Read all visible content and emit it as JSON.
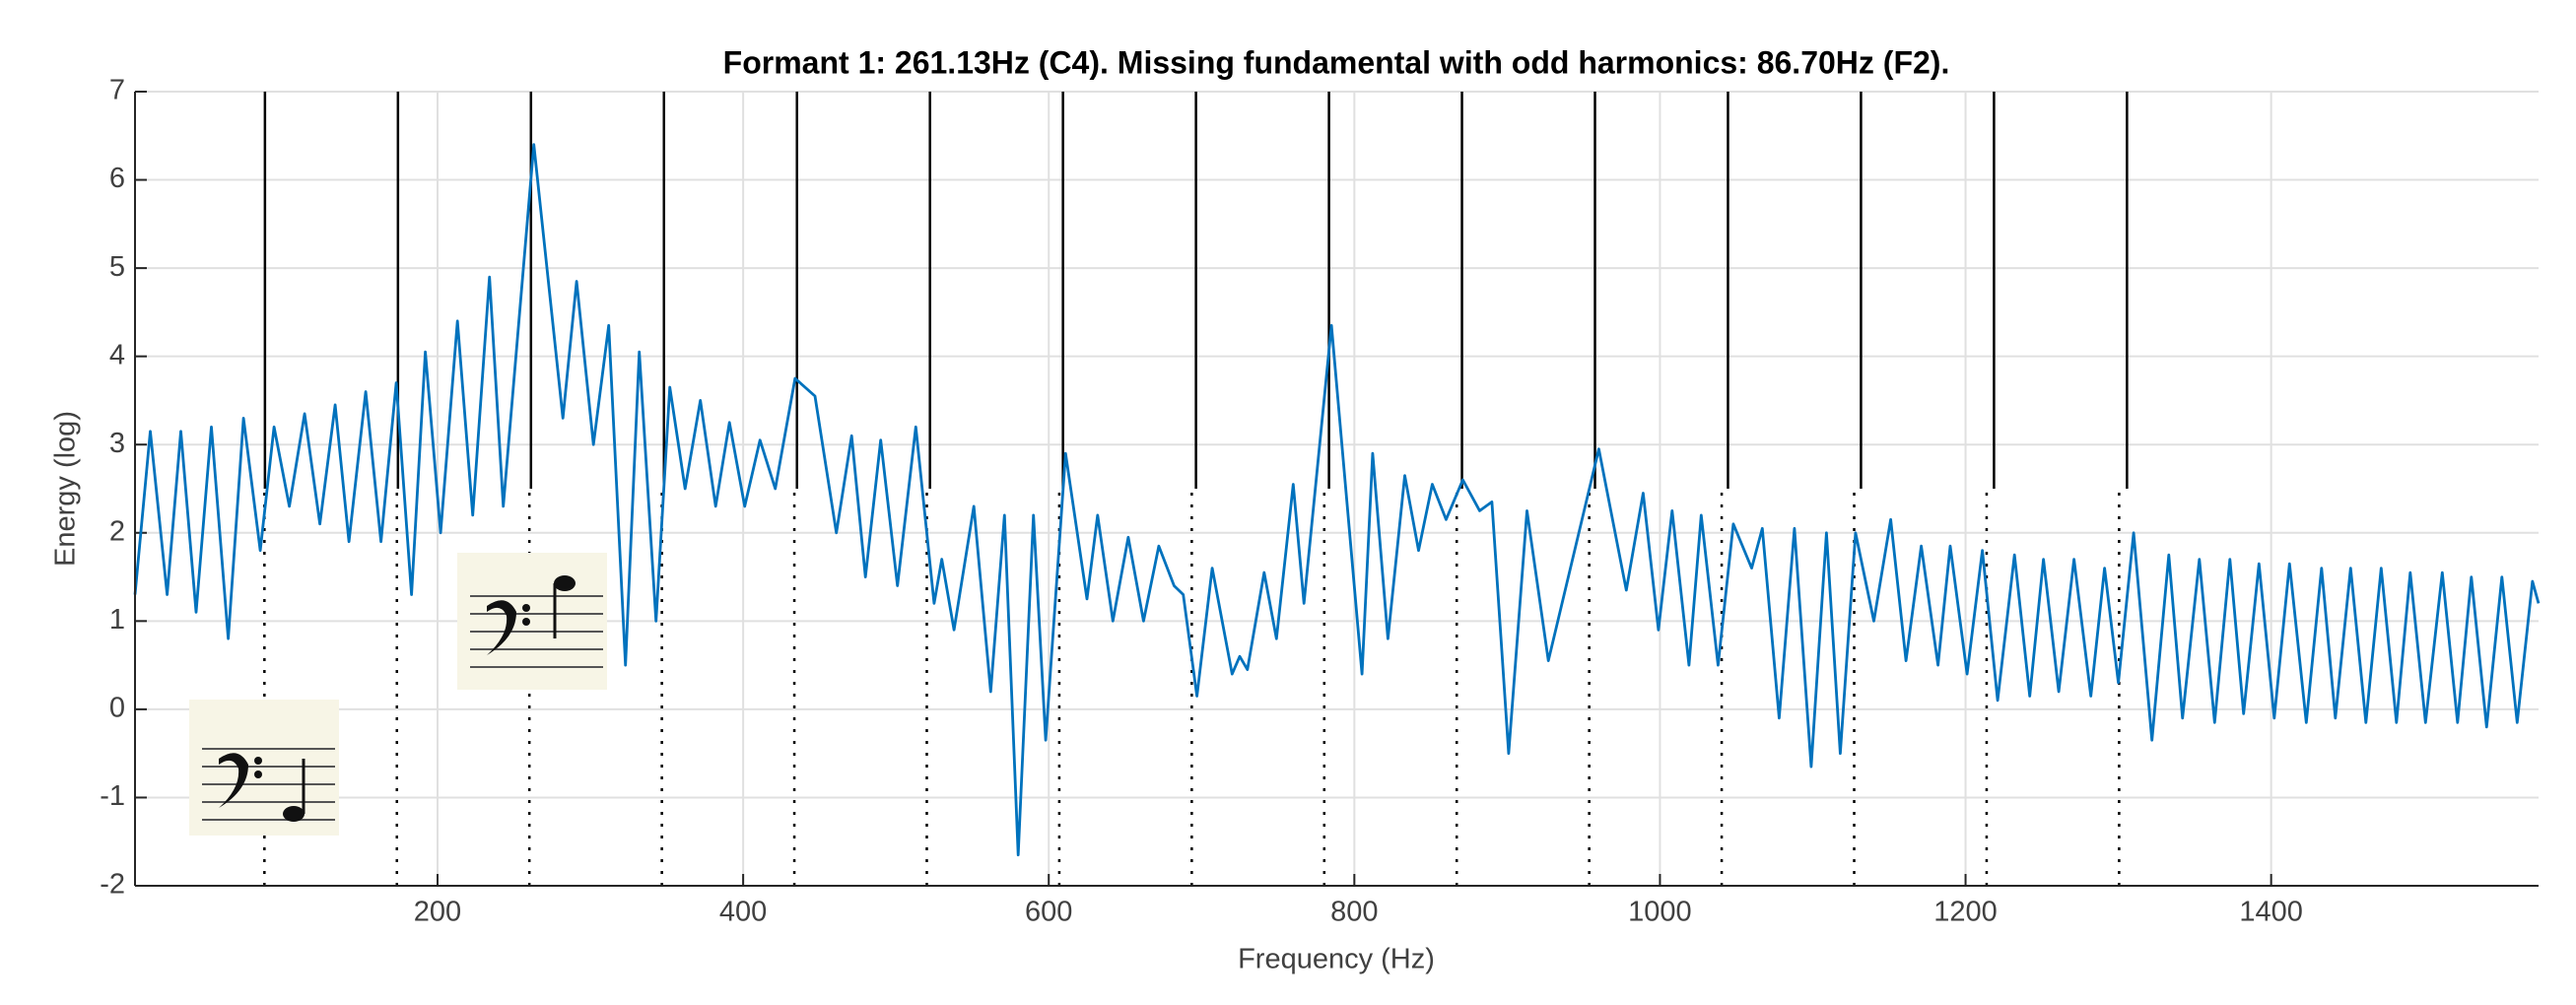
{
  "chart_data": {
    "type": "line",
    "title": "Formant 1: 261.13Hz (C4). Missing fundamental with odd harmonics: 86.70Hz (F2).",
    "xlabel": "Frequency (Hz)",
    "ylabel": "Energy (log)",
    "x": [
      2,
      12,
      23,
      32,
      42,
      52,
      63,
      73,
      84,
      93,
      103,
      113,
      123,
      133,
      142,
      153,
      163,
      173,
      183,
      192,
      202,
      213,
      223,
      234,
      243,
      263,
      282,
      291,
      302,
      312,
      323,
      332,
      343,
      352,
      362,
      372,
      382,
      391,
      401,
      411,
      421,
      434,
      447,
      461,
      471,
      480,
      490,
      501,
      513,
      525,
      530,
      538,
      551,
      562,
      571,
      580,
      590,
      598,
      611,
      625,
      632,
      642,
      652,
      662,
      672,
      682,
      688,
      697,
      707,
      720,
      725,
      730,
      741,
      749,
      760,
      767,
      785,
      805,
      812,
      822,
      833,
      842,
      851,
      860,
      871,
      882,
      890,
      901,
      913,
      927,
      960,
      978,
      989,
      999,
      1008,
      1019,
      1027,
      1038,
      1048,
      1060,
      1067,
      1078,
      1088,
      1099,
      1109,
      1118,
      1128,
      1140,
      1151,
      1161,
      1171,
      1182,
      1190,
      1201,
      1211,
      1221,
      1232,
      1242,
      1251,
      1261,
      1271,
      1282,
      1291,
      1300,
      1310,
      1322,
      1333,
      1342,
      1353,
      1363,
      1373,
      1382,
      1392,
      1402,
      1412,
      1423,
      1433,
      1442,
      1452,
      1462,
      1472,
      1482,
      1491,
      1501,
      1512,
      1522,
      1531,
      1541,
      1551,
      1561,
      1571,
      1575
    ],
    "series": [
      {
        "color": "#0072bd",
        "values": [
          1.3,
          3.15,
          1.3,
          3.15,
          1.1,
          3.2,
          0.8,
          3.3,
          1.8,
          3.2,
          2.3,
          3.35,
          2.1,
          3.45,
          1.9,
          3.6,
          1.9,
          3.7,
          1.3,
          4.05,
          2.0,
          4.4,
          2.2,
          4.9,
          2.3,
          6.4,
          3.3,
          4.85,
          3.0,
          4.35,
          0.5,
          4.05,
          1.0,
          3.65,
          2.5,
          3.5,
          2.3,
          3.25,
          2.3,
          3.05,
          2.5,
          3.75,
          3.55,
          2.0,
          3.1,
          1.5,
          3.05,
          1.4,
          3.2,
          1.2,
          1.7,
          0.9,
          2.3,
          0.2,
          2.2,
          -1.65,
          2.2,
          -0.35,
          2.9,
          1.25,
          2.2,
          1.0,
          1.95,
          1.0,
          1.85,
          1.4,
          1.3,
          0.15,
          1.6,
          0.4,
          0.6,
          0.45,
          1.55,
          0.8,
          2.55,
          1.2,
          4.35,
          0.4,
          2.9,
          0.8,
          2.65,
          1.8,
          2.55,
          2.15,
          2.6,
          2.25,
          2.35,
          -0.5,
          2.25,
          0.55,
          2.95,
          1.35,
          2.45,
          0.9,
          2.25,
          0.5,
          2.2,
          0.5,
          2.1,
          1.6,
          2.05,
          -0.1,
          2.05,
          -0.65,
          2.0,
          -0.5,
          2.0,
          1.0,
          2.15,
          0.55,
          1.85,
          0.5,
          1.85,
          0.4,
          1.8,
          0.1,
          1.75,
          0.15,
          1.7,
          0.2,
          1.7,
          0.15,
          1.6,
          0.3,
          2.0,
          -0.35,
          1.75,
          -0.1,
          1.7,
          -0.15,
          1.7,
          -0.05,
          1.65,
          -0.1,
          1.65,
          -0.15,
          1.6,
          -0.1,
          1.6,
          -0.15,
          1.6,
          -0.15,
          1.55,
          -0.15,
          1.55,
          -0.15,
          1.5,
          -0.2,
          1.5,
          -0.15,
          1.45,
          1.2
        ]
      }
    ],
    "solid_lines": {
      "x": [
        87.04,
        174.09,
        261.13,
        348.17,
        435.22,
        522.26,
        609.3,
        696.35,
        783.39,
        870.43,
        957.48,
        1044.52,
        1131.56,
        1218.61,
        1305.65
      ],
      "y_range": [
        2.5,
        7
      ]
    },
    "dotted_lines": {
      "x": [
        86.7,
        173.4,
        260.1,
        346.8,
        433.5,
        520.2,
        606.9,
        693.6,
        780.3,
        867,
        953.7,
        1040.4,
        1127.1,
        1213.8,
        1300.5
      ],
      "y_range": [
        -2,
        2.5
      ]
    },
    "xlim": [
      2,
      1575
    ],
    "ylim": [
      -2,
      7
    ],
    "xticks": [
      200,
      400,
      600,
      800,
      1000,
      1200,
      1400
    ],
    "yticks": [
      -2,
      -1,
      0,
      1,
      2,
      3,
      4,
      5,
      6,
      7
    ],
    "grid": true
  }
}
